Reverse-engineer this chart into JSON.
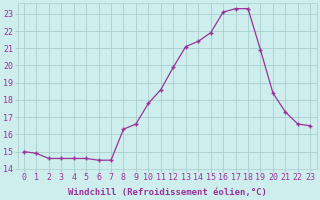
{
  "x": [
    0,
    1,
    2,
    3,
    4,
    5,
    6,
    7,
    8,
    9,
    10,
    11,
    12,
    13,
    14,
    15,
    16,
    17,
    18,
    19,
    20,
    21,
    22,
    23
  ],
  "y": [
    15.0,
    14.9,
    14.6,
    14.6,
    14.6,
    14.6,
    14.5,
    14.5,
    16.3,
    16.6,
    17.8,
    18.6,
    19.9,
    21.1,
    21.4,
    21.9,
    23.1,
    23.3,
    23.3,
    20.9,
    18.4,
    17.3,
    16.6,
    16.5
  ],
  "line_color": "#993399",
  "marker": "+",
  "bg_color": "#ceeeed",
  "grid_color": "#a8cece",
  "axis_color": "#993399",
  "xlabel": "Windchill (Refroidissement éolien,°C)",
  "xlim": [
    -0.5,
    23.5
  ],
  "ylim": [
    14.0,
    23.6
  ],
  "yticks": [
    14,
    15,
    16,
    17,
    18,
    19,
    20,
    21,
    22,
    23
  ],
  "xticks": [
    0,
    1,
    2,
    3,
    4,
    5,
    6,
    7,
    8,
    9,
    10,
    11,
    12,
    13,
    14,
    15,
    16,
    17,
    18,
    19,
    20,
    21,
    22,
    23
  ],
  "label_fontsize": 6.5,
  "tick_fontsize": 6.0
}
